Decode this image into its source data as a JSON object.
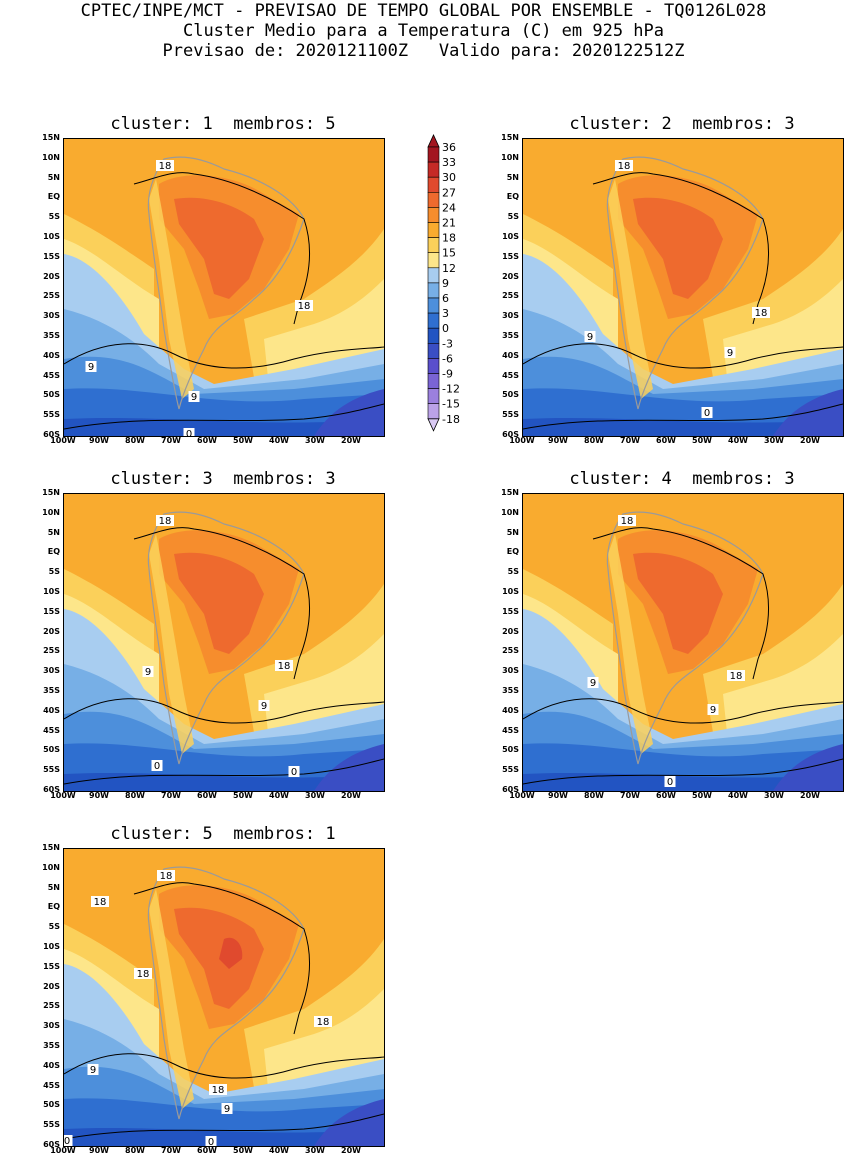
{
  "header": {
    "line1": "CPTEC/INPE/MCT - PREVISAO DE TEMPO GLOBAL POR ENSEMBLE - TQ0126L028",
    "line2": "Cluster Medio para a Temperatura (C) em 925 hPa",
    "line3": "Previsao de: 2020121100Z   Valido para: 2020122512Z"
  },
  "lat_labels": [
    "15N",
    "10N",
    "5N",
    "EQ",
    "5S",
    "10S",
    "15S",
    "20S",
    "25S",
    "30S",
    "35S",
    "40S",
    "45S",
    "50S",
    "55S",
    "60S"
  ],
  "lon_labels": [
    "100W",
    "90W",
    "80W",
    "70W",
    "60W",
    "50W",
    "40W",
    "30W",
    "20W"
  ],
  "colorbar": {
    "labels": [
      "36",
      "33",
      "30",
      "27",
      "24",
      "21",
      "18",
      "15",
      "12",
      "9",
      "6",
      "3",
      "0",
      "-3",
      "-6",
      "-9",
      "-12",
      "-15",
      "-18"
    ],
    "colors": [
      "#a31620",
      "#c52a26",
      "#e04a2e",
      "#ee6a2e",
      "#f68d2d",
      "#f9ab2f",
      "#fbd05a",
      "#fde68a",
      "#a8cdf0",
      "#77afe6",
      "#4d8fdb",
      "#2f6fd0",
      "#2254c2",
      "#3a4ec4",
      "#5a4fcc",
      "#7a64d4",
      "#9b80de",
      "#bba2e8",
      "#dacaf4"
    ]
  },
  "panels": [
    {
      "title": "cluster: 1  membros: 5",
      "contours": [
        "18",
        "18",
        "9",
        "9",
        "0"
      ]
    },
    {
      "title": "cluster: 2  membros: 3",
      "contours": [
        "18",
        "18",
        "9",
        "9",
        "0"
      ]
    },
    {
      "title": "cluster: 3  membros: 3",
      "contours": [
        "18",
        "18",
        "9",
        "9",
        "0",
        "0"
      ]
    },
    {
      "title": "cluster: 4  membros: 3",
      "contours": [
        "18",
        "18",
        "9",
        "9",
        "0"
      ]
    },
    {
      "title": "cluster: 5  membros: 1",
      "contours": [
        "18",
        "18",
        "18",
        "18",
        "9",
        "18",
        "9",
        "0",
        "0"
      ]
    }
  ]
}
